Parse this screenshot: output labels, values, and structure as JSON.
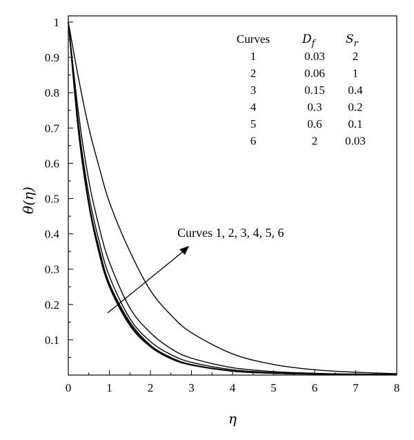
{
  "chart_data": {
    "type": "line",
    "title": "",
    "xlabel": "η",
    "ylabel": "θ(η)",
    "xlim": [
      0,
      8
    ],
    "ylim": [
      0,
      1
    ],
    "x_ticks": [
      "0",
      "1",
      "2",
      "3",
      "4",
      "5",
      "6",
      "7",
      "8"
    ],
    "y_ticks": [
      "0.1",
      "0.2",
      "0.3",
      "0.4",
      "0.5",
      "0.6",
      "0.7",
      "0.8",
      "0.9",
      "1"
    ],
    "grid": false,
    "x": [
      0,
      0.25,
      0.5,
      0.75,
      1,
      1.5,
      2,
      2.5,
      3,
      4,
      5,
      6,
      7,
      8
    ],
    "series": [
      {
        "name": "1",
        "values": [
          1.0,
          0.84,
          0.7,
          0.59,
          0.49,
          0.35,
          0.24,
          0.17,
          0.12,
          0.06,
          0.03,
          0.015,
          0.008,
          0.004
        ]
      },
      {
        "name": "2",
        "values": [
          1.0,
          0.74,
          0.55,
          0.42,
          0.32,
          0.19,
          0.12,
          0.075,
          0.048,
          0.021,
          0.01,
          0.005,
          0.003,
          0.002
        ]
      },
      {
        "name": "3",
        "values": [
          1.0,
          0.71,
          0.51,
          0.38,
          0.28,
          0.16,
          0.095,
          0.058,
          0.036,
          0.015,
          0.007,
          0.004,
          0.002,
          0.001
        ]
      },
      {
        "name": "4",
        "values": [
          1.0,
          0.7,
          0.49,
          0.36,
          0.26,
          0.15,
          0.085,
          0.05,
          0.03,
          0.012,
          0.005,
          0.003,
          0.002,
          0.001
        ]
      },
      {
        "name": "5",
        "values": [
          1.0,
          0.69,
          0.485,
          0.35,
          0.255,
          0.145,
          0.082,
          0.048,
          0.029,
          0.011,
          0.005,
          0.003,
          0.002,
          0.001
        ]
      },
      {
        "name": "6",
        "values": [
          1.0,
          0.685,
          0.48,
          0.345,
          0.25,
          0.14,
          0.08,
          0.046,
          0.028,
          0.011,
          0.005,
          0.003,
          0.002,
          0.001
        ]
      }
    ],
    "table": {
      "headers": [
        "Curves",
        "D",
        "f",
        "S",
        "r"
      ],
      "rows": [
        [
          "1",
          "0.03",
          "2"
        ],
        [
          "2",
          "0.06",
          "1"
        ],
        [
          "3",
          "0.15",
          "0.4"
        ],
        [
          "4",
          "0.3",
          "0.2"
        ],
        [
          "5",
          "0.6",
          "0.1"
        ],
        [
          "6",
          "2",
          "0.03"
        ]
      ]
    },
    "annotation": "Curves 1, 2, 3, 4, 5, 6"
  }
}
